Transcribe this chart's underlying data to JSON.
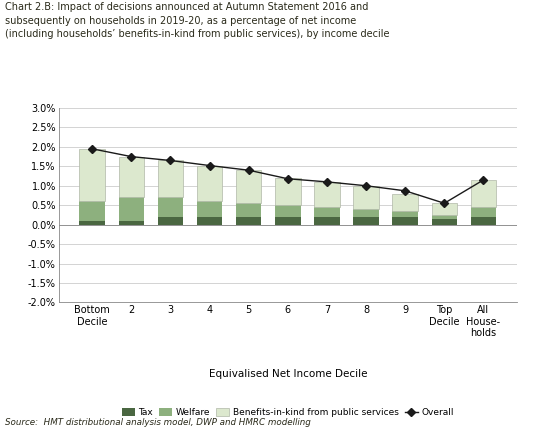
{
  "title_line1": "Chart 2.B: Impact of decisions announced at Autumn Statement 2016 and",
  "title_line2": "subsequently on households in 2019-20, as a percentage of net income",
  "title_line3": "(including households’ benefits-in-kind from public services), by income decile",
  "categories": [
    "Bottom\nDecile",
    "2",
    "3",
    "4",
    "5",
    "6",
    "7",
    "8",
    "9",
    "Top\nDecile",
    "All\nHouse-\nholds"
  ],
  "tax": [
    0.1,
    0.1,
    0.2,
    0.2,
    0.2,
    0.2,
    0.2,
    0.2,
    0.2,
    0.15,
    0.2
  ],
  "welfare": [
    0.5,
    0.6,
    0.5,
    0.4,
    0.35,
    0.3,
    0.25,
    0.2,
    0.15,
    0.1,
    0.25
  ],
  "bik": [
    1.35,
    1.05,
    0.95,
    0.9,
    0.85,
    0.7,
    0.65,
    0.6,
    0.45,
    0.3,
    0.7
  ],
  "overall": [
    1.95,
    1.75,
    1.65,
    1.52,
    1.4,
    1.18,
    1.1,
    1.0,
    0.87,
    0.55,
    1.15
  ],
  "ylim": [
    -2.0,
    3.0
  ],
  "yticks": [
    -2.0,
    -1.5,
    -1.0,
    -0.5,
    0.0,
    0.5,
    1.0,
    1.5,
    2.0,
    2.5,
    3.0
  ],
  "xlabel": "Equivalised Net Income Decile",
  "source": "Source:  HMT distributional analysis model, DWP and HMRC modelling",
  "color_tax": "#4a6741",
  "color_welfare": "#8db07e",
  "color_bik": "#dce8ce",
  "color_overall": "#1a1a1a",
  "legend_labels": [
    "Tax",
    "Welfare",
    "Benefits-in-kind from public services",
    "Overall"
  ],
  "background_color": "#ffffff"
}
